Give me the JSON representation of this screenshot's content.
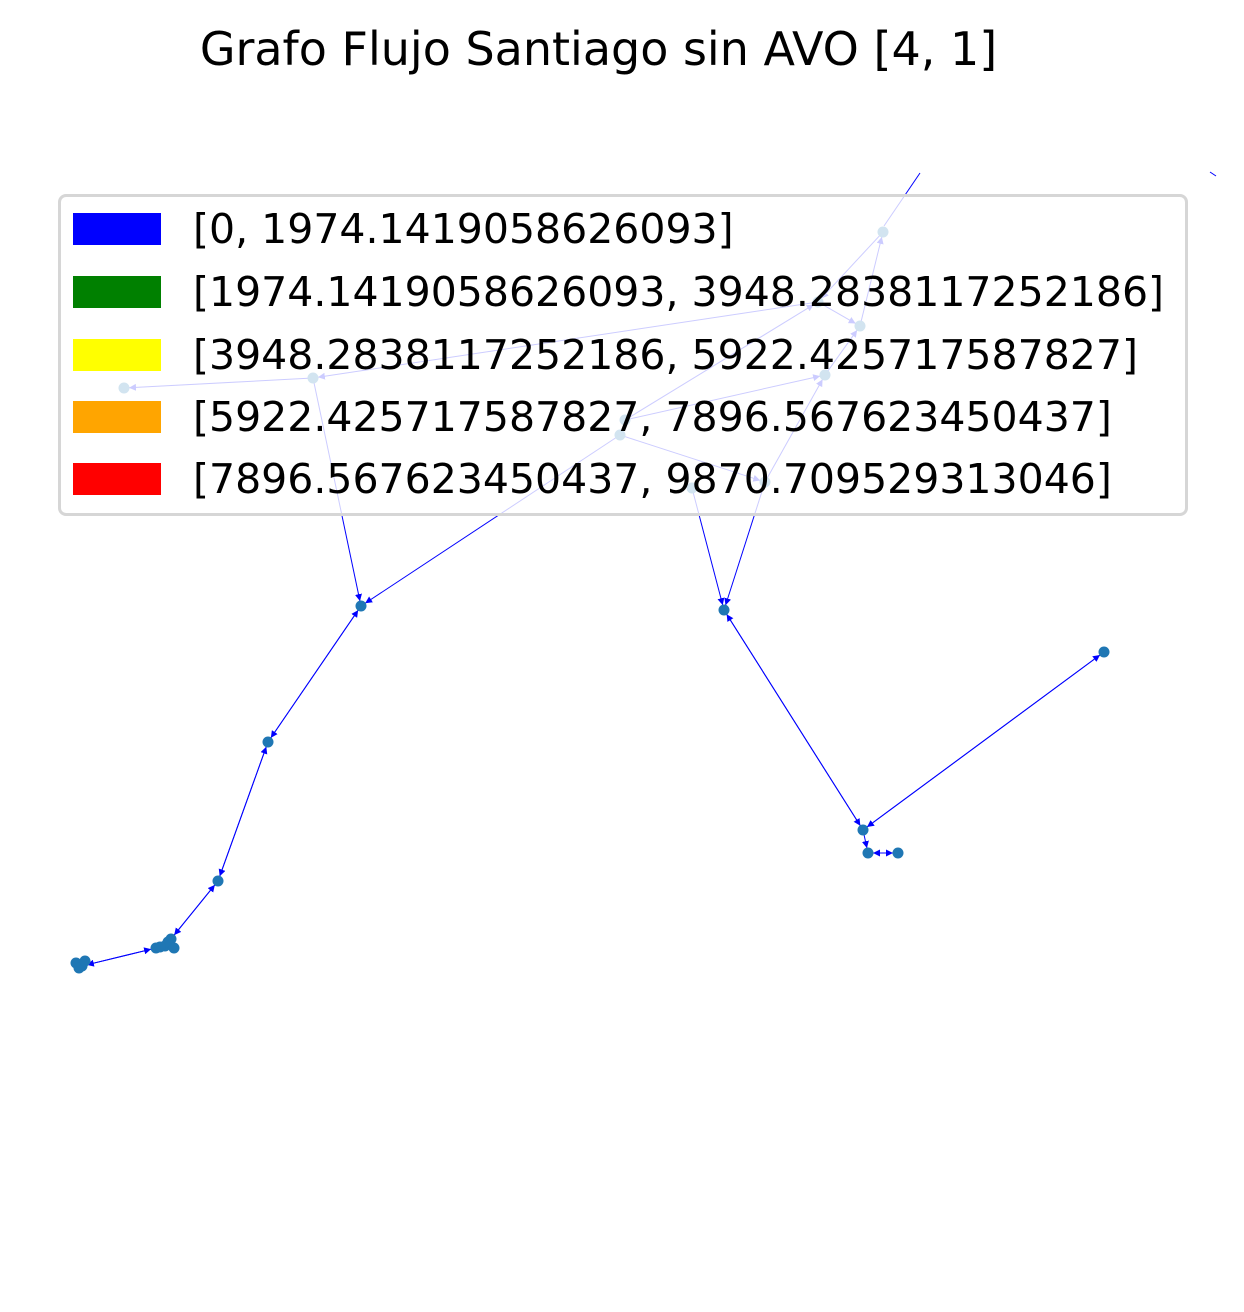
{
  "title": "Grafo Flujo Santiago sin AVO [4, 1]",
  "legend": [
    {
      "label": "[0, 1974.1419058626093]",
      "color": "#0000ff"
    },
    {
      "label": "[1974.1419058626093, 3948.2838117252186]",
      "color": "#008000"
    },
    {
      "label": "[3948.2838117252186, 5922.425717587827]",
      "color": "#ffff00"
    },
    {
      "label": "[5922.425717587827, 7896.567623450437]",
      "color": "#ffa500"
    },
    {
      "label": "[7896.567623450437, 9870.709529313046]",
      "color": "#ff0000"
    }
  ],
  "colors": {
    "edge": "#0000ff",
    "node": "#1f77b4"
  }
}
